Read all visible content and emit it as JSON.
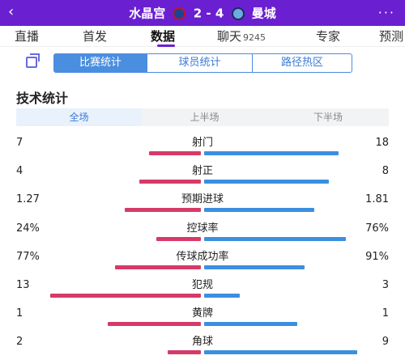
{
  "header": {
    "back_icon": "‹",
    "home_team": "水晶宫",
    "score": "2 - 4",
    "away_team": "曼城",
    "more_icon": "···"
  },
  "nav": {
    "tabs": [
      {
        "label": "直播"
      },
      {
        "label": "首发"
      },
      {
        "label": "数据"
      },
      {
        "label": "聊天",
        "count": "9245"
      },
      {
        "label": "专家"
      },
      {
        "label": "预测"
      }
    ],
    "active": "数据"
  },
  "segments": [
    "比赛统计",
    "球员统计",
    "路径热区"
  ],
  "section_title": "技术统计",
  "periods": [
    "全场",
    "上半场",
    "下半场"
  ],
  "colors": {
    "home": "#d63a68",
    "away": "#3b8fe0",
    "accent": "#6a1fd0"
  },
  "stats": [
    {
      "label": "射门",
      "home": "7",
      "away": "18",
      "home_frac": 0.28,
      "away_frac": 0.72
    },
    {
      "label": "射正",
      "home": "4",
      "away": "8",
      "home_frac": 0.33,
      "away_frac": 0.67
    },
    {
      "label": "预期进球",
      "home": "1.27",
      "away": "1.81",
      "home_frac": 0.41,
      "away_frac": 0.59
    },
    {
      "label": "控球率",
      "home": "24%",
      "away": "76%",
      "home_frac": 0.24,
      "away_frac": 0.76
    },
    {
      "label": "传球成功率",
      "home": "77%",
      "away": "91%",
      "home_frac": 0.46,
      "away_frac": 0.54
    },
    {
      "label": "犯规",
      "home": "13",
      "away": "3",
      "home_frac": 0.81,
      "away_frac": 0.19
    },
    {
      "label": "黄牌",
      "home": "1",
      "away": "1",
      "home_frac": 0.5,
      "away_frac": 0.5
    },
    {
      "label": "角球",
      "home": "2",
      "away": "9",
      "home_frac": 0.18,
      "away_frac": 0.82
    }
  ]
}
